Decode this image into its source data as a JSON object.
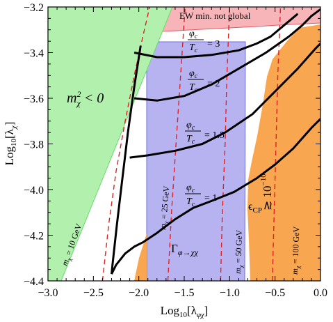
{
  "chart_data": {
    "type": "region-contour",
    "xlabel": "Log₁₀[λφχ]",
    "ylabel": "Log₁₀[λχ]",
    "xlim": [
      -3.0,
      0.0
    ],
    "ylim": [
      -4.4,
      -3.2
    ],
    "xticks": [
      "−3.0",
      "−2.5",
      "−2.0",
      "−1.5",
      "−1.0",
      "−0.5",
      "0.0"
    ],
    "yticks": [
      "−3.2",
      "−3.4",
      "−3.6",
      "−3.8",
      "−4.0",
      "−4.2",
      "−4.4"
    ],
    "colors": {
      "tachyonic": "#b2f0ad",
      "tachyonic_edge": "#66dd66",
      "ew_not_global": "#f7b4b9",
      "ew_not_global_edge": "#e35b64",
      "gamma_region": "#b7b3f0",
      "gamma_edge": "#6d6fdc",
      "cp_region": "#f9a650",
      "mass_lines": "#dd2222",
      "contours": "#000000"
    },
    "regions": [
      {
        "name": "tachyonic",
        "label": "m²χ < 0"
      },
      {
        "name": "ew_not_global",
        "label": "EW min. not global"
      },
      {
        "name": "gamma_region",
        "label": "Γφ→χχ"
      },
      {
        "name": "cp_region",
        "label": "εCP ≳ 10⁻¹⁰"
      }
    ],
    "contours": [
      {
        "ratio_label": "φc/Tc = 3",
        "points": [
          [
            -2.05,
            -3.4
          ],
          [
            -1.8,
            -3.42
          ],
          [
            -1.5,
            -3.42
          ],
          [
            -1.2,
            -3.41
          ],
          [
            -0.9,
            -3.39
          ],
          [
            -0.7,
            -3.36
          ],
          [
            -0.55,
            -3.33
          ],
          [
            -0.4,
            -3.28
          ],
          [
            -0.25,
            -3.23
          ]
        ]
      },
      {
        "ratio_label": "φc/Tc = 2",
        "points": [
          [
            -2.05,
            -3.6
          ],
          [
            -1.8,
            -3.61
          ],
          [
            -1.5,
            -3.59
          ],
          [
            -1.2,
            -3.54
          ],
          [
            -0.9,
            -3.47
          ],
          [
            -0.6,
            -3.4
          ],
          [
            -0.35,
            -3.33
          ],
          [
            -0.2,
            -3.28
          ],
          [
            -0.1,
            -3.24
          ],
          [
            0.0,
            -3.21
          ]
        ]
      },
      {
        "ratio_label": "φc/Tc = 1.5",
        "points": [
          [
            -2.1,
            -3.86
          ],
          [
            -1.9,
            -3.85
          ],
          [
            -1.6,
            -3.83
          ],
          [
            -1.3,
            -3.8
          ],
          [
            -1.05,
            -3.75
          ],
          [
            -0.75,
            -3.67
          ],
          [
            -0.5,
            -3.57
          ],
          [
            -0.25,
            -3.47
          ],
          [
            -0.05,
            -3.38
          ],
          [
            0.0,
            -3.36
          ]
        ]
      },
      {
        "ratio_label": "φc/Tc = 1",
        "points": [
          [
            -2.3,
            -4.37
          ],
          [
            -2.25,
            -4.33
          ],
          [
            -2.15,
            -4.28
          ],
          [
            -2.05,
            -4.25
          ],
          [
            -1.95,
            -4.23
          ],
          [
            -1.8,
            -4.19
          ],
          [
            -1.6,
            -4.13
          ],
          [
            -1.4,
            -4.08
          ],
          [
            -1.2,
            -4.05
          ],
          [
            -0.95,
            -4.01
          ],
          [
            -0.7,
            -3.95
          ],
          [
            -0.5,
            -3.89
          ],
          [
            -0.3,
            -3.82
          ],
          [
            -0.1,
            -3.73
          ],
          [
            0.0,
            -3.69
          ]
        ]
      }
    ],
    "mass_lines": [
      {
        "label": "mχ = 10 GeV",
        "points": [
          [
            -2.4,
            -4.4
          ],
          [
            -2.33,
            -4.15
          ],
          [
            -2.25,
            -3.92
          ],
          [
            -2.15,
            -3.7
          ],
          [
            -2.05,
            -3.5
          ],
          [
            -1.95,
            -3.32
          ],
          [
            -1.88,
            -3.2
          ]
        ]
      },
      {
        "label": "mχ = 25 GeV",
        "points": [
          [
            -1.68,
            -4.4
          ],
          [
            -1.64,
            -4.1
          ],
          [
            -1.59,
            -3.8
          ],
          [
            -1.54,
            -3.5
          ],
          [
            -1.49,
            -3.2
          ]
        ]
      },
      {
        "label": "mχ = 50 GeV",
        "points": [
          [
            -1.1,
            -4.4
          ],
          [
            -1.08,
            -4.1
          ],
          [
            -1.05,
            -3.8
          ],
          [
            -1.03,
            -3.5
          ],
          [
            -1.0,
            -3.2
          ]
        ]
      },
      {
        "label": "mχ = 100 GeV",
        "points": [
          [
            -0.53,
            -4.4
          ],
          [
            -0.51,
            -4.1
          ],
          [
            -0.49,
            -3.8
          ],
          [
            -0.47,
            -3.5
          ],
          [
            -0.44,
            -3.2
          ]
        ]
      }
    ],
    "grid": false,
    "legend": "none"
  }
}
